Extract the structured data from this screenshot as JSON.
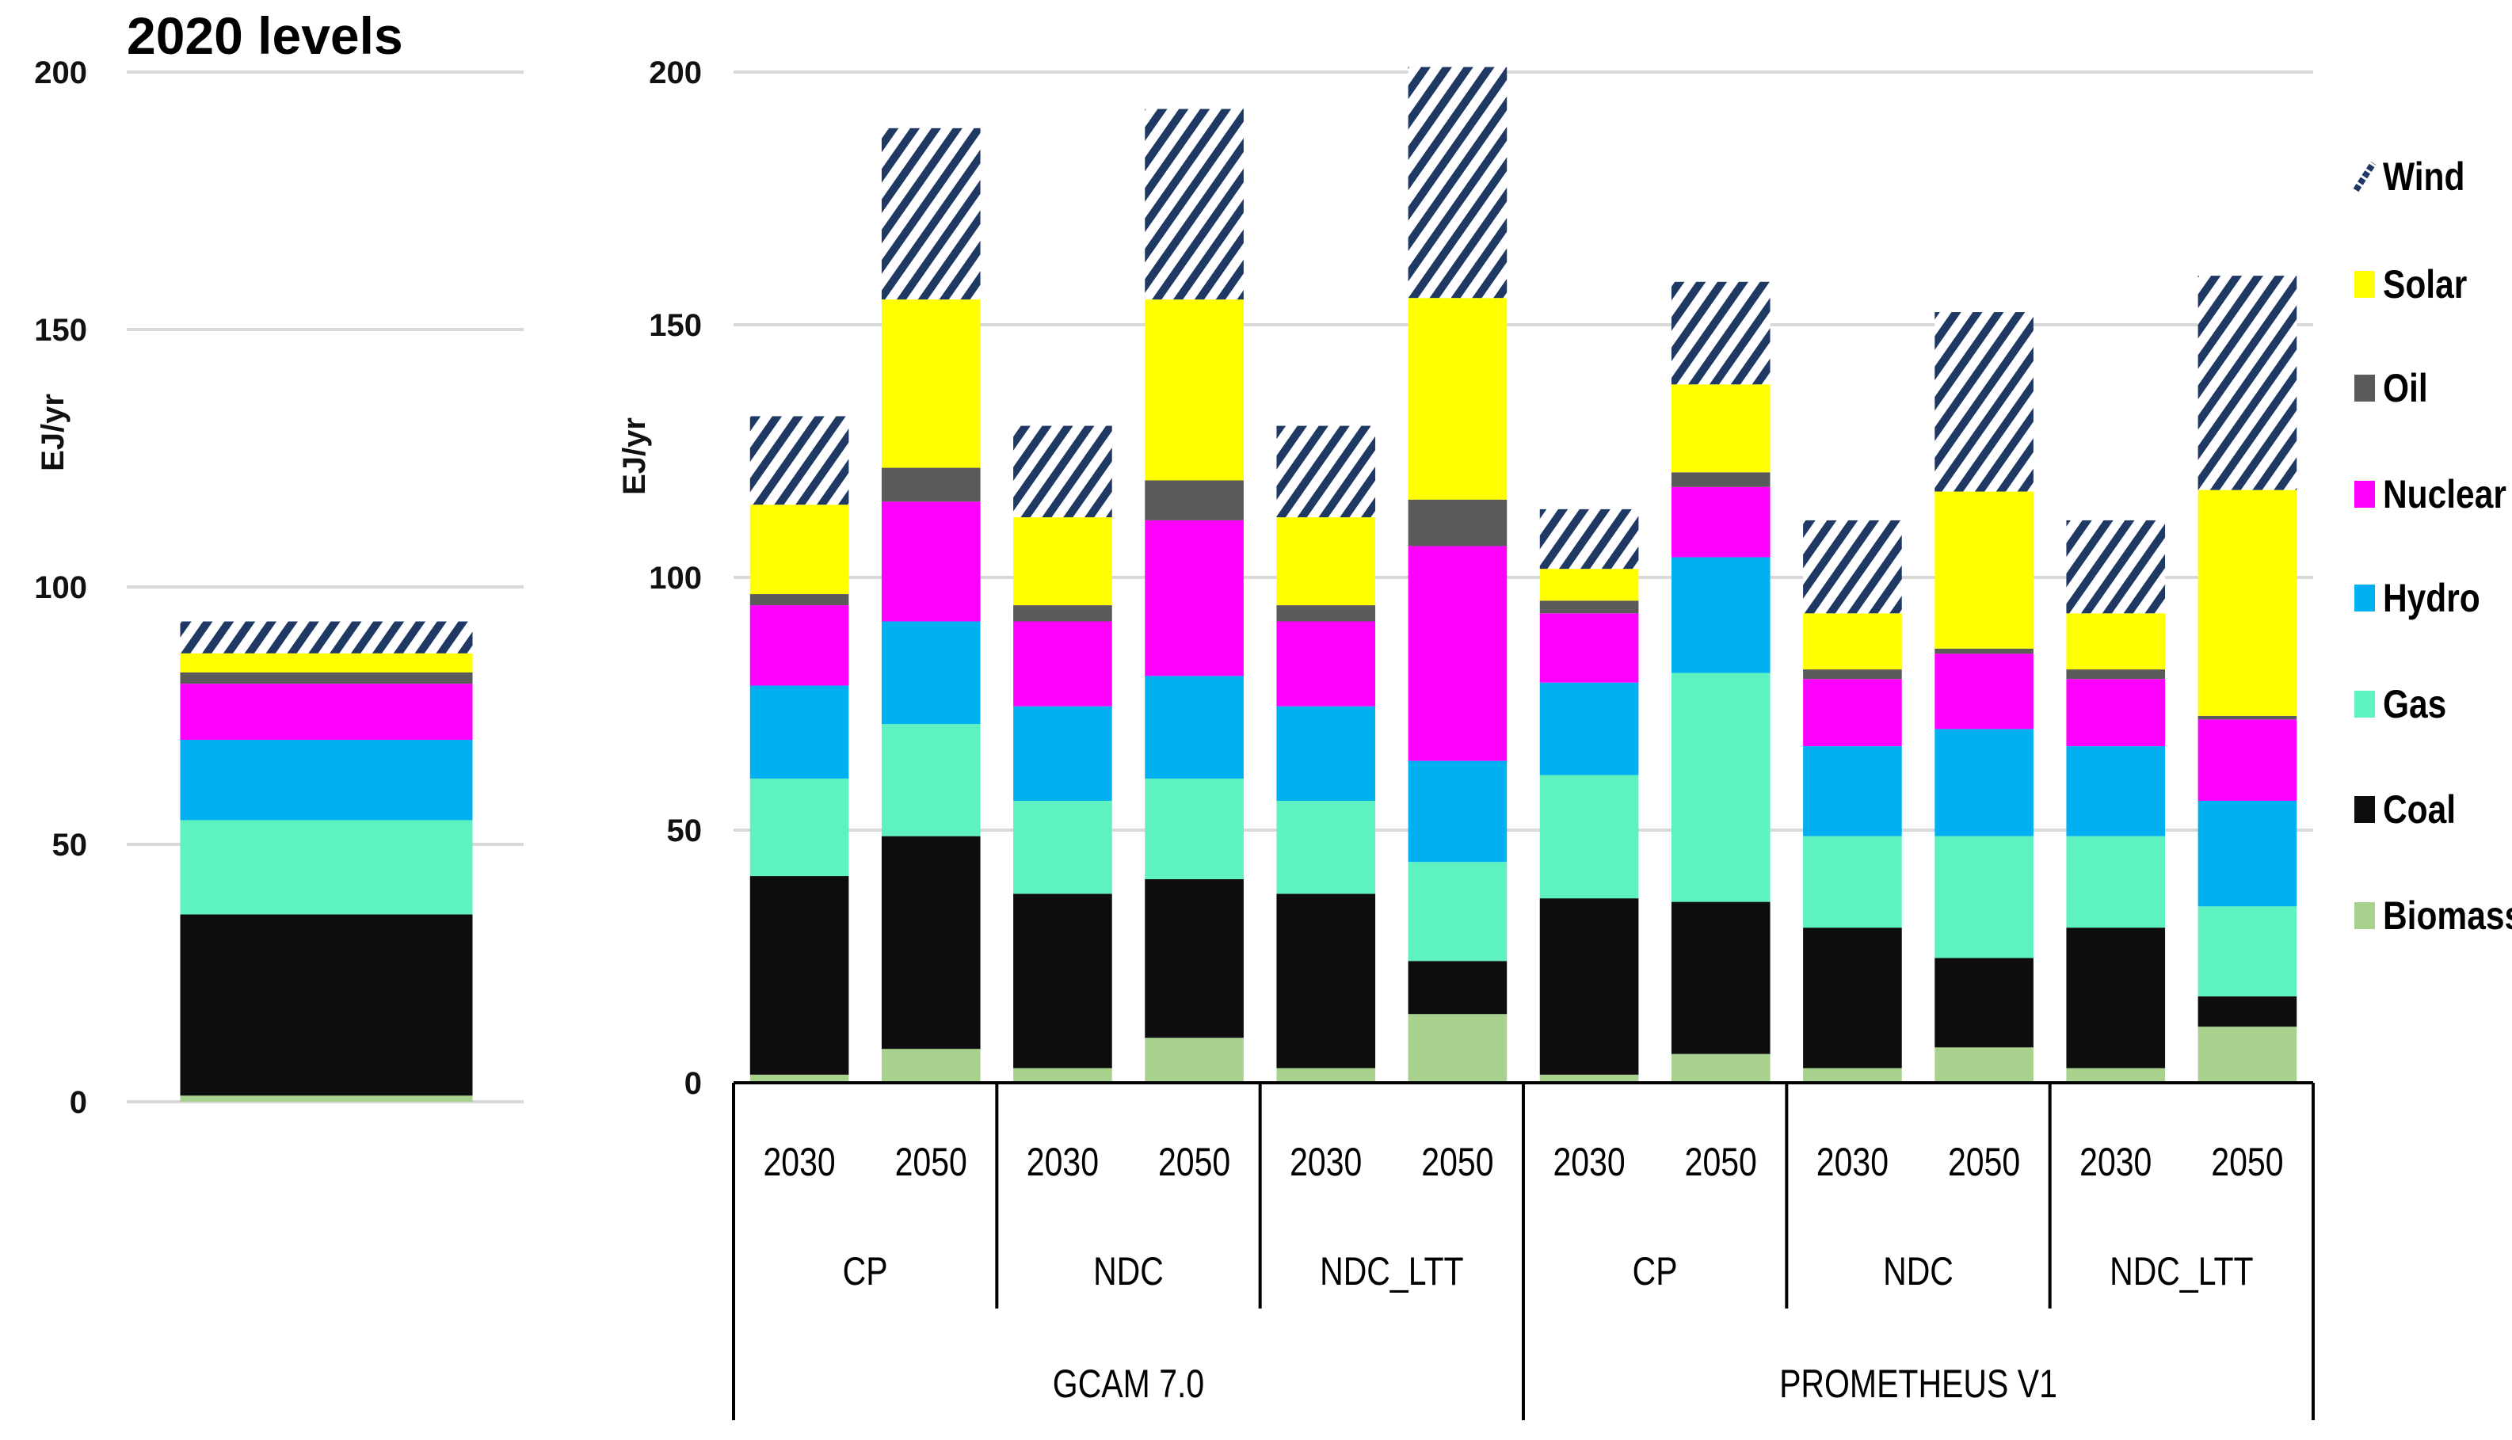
{
  "chart_data": [
    {
      "type": "bar",
      "stacked": true,
      "title": "2020 levels",
      "ylabel": "EJ/yr",
      "ylim": [
        0,
        200
      ],
      "yticks": [
        "0",
        "50",
        "100",
        "150",
        "200"
      ],
      "grid": true,
      "categories": [
        ""
      ],
      "series": [
        {
          "name": "Biomass",
          "values": [
            1.2
          ]
        },
        {
          "name": "Coal",
          "values": [
            35.2
          ]
        },
        {
          "name": "Gas",
          "values": [
            18.3
          ]
        },
        {
          "name": "Hydro",
          "values": [
            15.6
          ]
        },
        {
          "name": "Nuclear",
          "values": [
            10.9
          ]
        },
        {
          "name": "Oil",
          "values": [
            2.2
          ]
        },
        {
          "name": "Solar",
          "values": [
            3.7
          ]
        },
        {
          "name": "Wind",
          "values": [
            6.2
          ]
        }
      ]
    },
    {
      "type": "bar",
      "stacked": true,
      "title": "",
      "ylabel": "EJ/yr",
      "ylim": [
        0,
        200
      ],
      "yticks": [
        "0",
        "50",
        "100",
        "150",
        "200"
      ],
      "grid": true,
      "years": [
        "2030",
        "2050",
        "2030",
        "2050",
        "2030",
        "2050",
        "2030",
        "2050",
        "2030",
        "2050",
        "2030",
        "2050"
      ],
      "scenarios": [
        "CP",
        "NDC",
        "NDC_LTT",
        "CP",
        "NDC",
        "NDC_LTT"
      ],
      "models": [
        "GCAM 7.0",
        "PROMETHEUS V1"
      ],
      "legend_position": "right",
      "series": [
        {
          "name": "Biomass",
          "values": [
            1.6,
            6.7,
            2.9,
            8.9,
            2.9,
            13.6,
            1.6,
            5.7,
            2.9,
            7.0,
            2.9,
            11.1
          ]
        },
        {
          "name": "Coal",
          "values": [
            39.3,
            42.1,
            34.5,
            31.4,
            34.5,
            10.5,
            34.9,
            30.1,
            27.8,
            17.7,
            27.8,
            6.0
          ]
        },
        {
          "name": "Gas",
          "values": [
            19.3,
            22.2,
            18.4,
            19.9,
            18.4,
            19.6,
            24.4,
            45.3,
            18.1,
            24.1,
            18.1,
            17.8
          ]
        },
        {
          "name": "Hydro",
          "values": [
            18.4,
            20.3,
            18.7,
            20.3,
            18.7,
            20.0,
            18.3,
            22.9,
            17.8,
            21.2,
            17.8,
            20.9
          ]
        },
        {
          "name": "Nuclear",
          "values": [
            15.9,
            23.7,
            16.8,
            30.8,
            16.8,
            42.5,
            13.7,
            13.9,
            13.3,
            14.9,
            13.3,
            16.1
          ]
        },
        {
          "name": "Oil",
          "values": [
            2.2,
            6.7,
            3.2,
            7.9,
            3.2,
            9.2,
            2.5,
            2.9,
            1.9,
            1.0,
            1.9,
            0.7
          ]
        },
        {
          "name": "Solar",
          "values": [
            17.7,
            33.3,
            17.4,
            35.8,
            17.4,
            39.9,
            6.3,
            17.4,
            11.1,
            31.1,
            11.1,
            44.7
          ]
        },
        {
          "name": "Wind",
          "values": [
            17.5,
            33.9,
            18.1,
            37.7,
            18.1,
            45.7,
            11.8,
            20.3,
            18.4,
            35.5,
            18.4,
            42.4
          ]
        }
      ]
    }
  ],
  "legend": [
    "Wind",
    "Solar",
    "Oil",
    "Nuclear",
    "Hydro",
    "Gas",
    "Coal",
    "Biomass"
  ],
  "colors": {
    "Biomass": "#a9d18e",
    "Coal": "#0d0d0d",
    "Gas": "#5ef2c0",
    "Hydro": "#00b0f0",
    "Nuclear": "#ff00ff",
    "Oil": "#5a5a5a",
    "Solar": "#ffff00",
    "Wind": "#1f3864"
  }
}
